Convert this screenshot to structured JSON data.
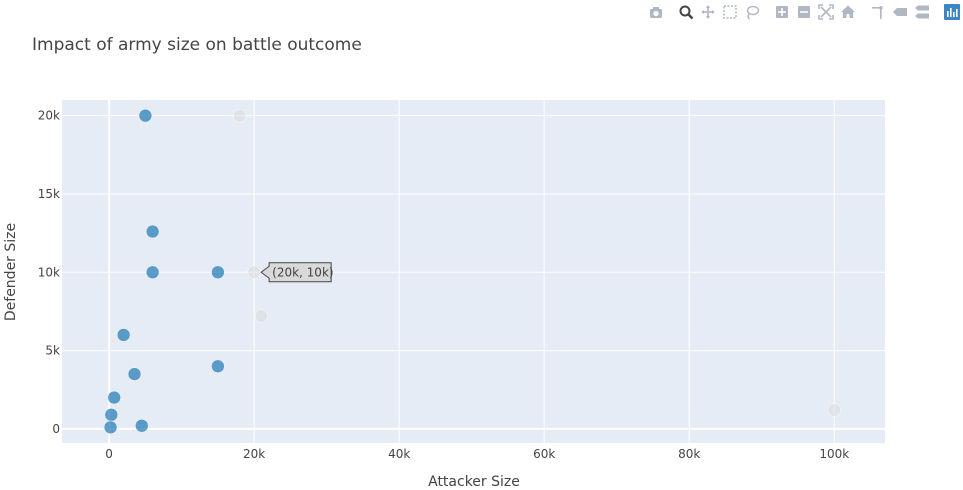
{
  "modebar": {
    "buttons": [
      {
        "name": "camera-icon",
        "group": 0
      },
      {
        "name": "zoom-icon",
        "group": 1,
        "active": true
      },
      {
        "name": "pan-icon",
        "group": 1
      },
      {
        "name": "box-select-icon",
        "group": 1
      },
      {
        "name": "lasso-select-icon",
        "group": 1
      },
      {
        "name": "zoom-in-icon",
        "group": 2
      },
      {
        "name": "zoom-out-icon",
        "group": 2
      },
      {
        "name": "autoscale-icon",
        "group": 2
      },
      {
        "name": "reset-axes-icon",
        "group": 2
      },
      {
        "name": "toggle-spike-lines-icon",
        "group": 3
      },
      {
        "name": "hover-closest-icon",
        "group": 3
      },
      {
        "name": "hover-compare-icon",
        "group": 3
      },
      {
        "name": "plotly-logo-icon",
        "group": 4
      }
    ]
  },
  "colors": {
    "plot_bg": "#e5ecf6",
    "grid": "#ffffff",
    "marker": "#1f77b4",
    "marker_dim": "#d9d9d9",
    "text": "#444444",
    "modebar_icon": "#b0b7c3",
    "modebar_active": "#444444",
    "logo": "#3f84c4"
  },
  "chart_data": {
    "type": "scatter",
    "title": "Impact of army size on battle outcome",
    "xlabel": "Attacker Size",
    "ylabel": "Defender Size",
    "xlim": [
      -6500,
      107000
    ],
    "ylim": [
      -900,
      21000
    ],
    "xticks": [
      0,
      20000,
      40000,
      60000,
      80000,
      100000
    ],
    "xtick_labels": [
      "0",
      "20k",
      "40k",
      "60k",
      "80k",
      "100k"
    ],
    "yticks": [
      0,
      5000,
      10000,
      15000,
      20000
    ],
    "ytick_labels": [
      "0",
      "5k",
      "10k",
      "15k",
      "20k"
    ],
    "grid": true,
    "series": [
      {
        "name": "selected",
        "opacity": 0.7,
        "points": [
          {
            "x": 5000,
            "y": 20000
          },
          {
            "x": 6000,
            "y": 12600
          },
          {
            "x": 6000,
            "y": 10000
          },
          {
            "x": 15000,
            "y": 10000
          },
          {
            "x": 2000,
            "y": 6000
          },
          {
            "x": 15000,
            "y": 4000
          },
          {
            "x": 3500,
            "y": 3500
          },
          {
            "x": 700,
            "y": 2000
          },
          {
            "x": 300,
            "y": 900
          },
          {
            "x": 4500,
            "y": 200
          },
          {
            "x": 200,
            "y": 100
          }
        ]
      },
      {
        "name": "unselected",
        "opacity": 0.5,
        "points": [
          {
            "x": 18000,
            "y": 20000
          },
          {
            "x": 20000,
            "y": 10000
          },
          {
            "x": 21000,
            "y": 7200
          },
          {
            "x": 100000,
            "y": 1200
          }
        ]
      }
    ],
    "hover": {
      "x": 20000,
      "y": 10000,
      "label": "(20k, 10k)"
    }
  }
}
